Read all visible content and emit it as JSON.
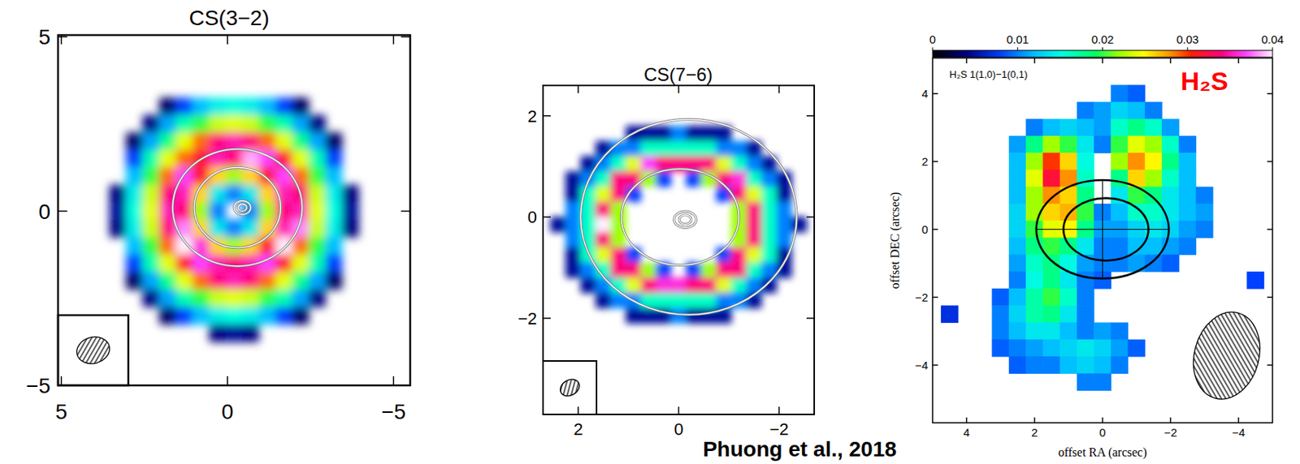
{
  "chart_data": [
    {
      "type": "heatmap",
      "title": "CS(3−2)",
      "xlim": [
        5.1,
        -5.5
      ],
      "ylim": [
        -5,
        5.05
      ],
      "xticks": [
        5,
        0,
        {
          "value": -5,
          "label": "−5"
        }
      ],
      "yticks": [
        {
          "value": -5,
          "label": "−5"
        },
        0,
        5
      ],
      "clim": [
        0,
        1
      ],
      "x": [
        3.3,
        2.8,
        2.3,
        1.8,
        1.3,
        0.8,
        0.3,
        -0.2,
        -0.7,
        -1.2,
        -1.7,
        -2.2,
        -2.7,
        -3.2,
        -3.7
      ],
      "y": [
        3,
        2.5,
        2,
        1.5,
        1,
        0.5,
        0,
        -0.5,
        -1,
        -1.5,
        -2,
        -2.5,
        -3,
        -3.5
      ],
      "cells": [
        [
          null,
          null,
          null,
          0.08,
          0.2,
          0.3,
          0.36,
          0.38,
          0.36,
          0.3,
          0.2,
          0.08,
          null,
          null,
          null
        ],
        [
          null,
          null,
          0.1,
          0.28,
          0.42,
          0.5,
          0.58,
          0.6,
          0.58,
          0.5,
          0.42,
          0.28,
          0.1,
          null,
          null
        ],
        [
          null,
          0.08,
          0.28,
          0.45,
          0.6,
          0.72,
          0.85,
          0.88,
          0.85,
          0.72,
          0.6,
          0.45,
          0.28,
          0.08,
          null
        ],
        [
          null,
          0.2,
          0.42,
          0.6,
          0.72,
          0.8,
          0.88,
          0.85,
          0.97,
          0.92,
          0.8,
          0.6,
          0.42,
          0.2,
          null
        ],
        [
          null,
          0.3,
          0.5,
          0.72,
          0.92,
          0.8,
          0.65,
          0.55,
          0.65,
          0.8,
          0.92,
          0.72,
          0.5,
          0.3,
          null
        ],
        [
          0.1,
          0.36,
          0.58,
          0.85,
          0.88,
          0.65,
          0.35,
          0.25,
          0.35,
          0.65,
          0.88,
          0.85,
          0.58,
          0.36,
          0.1
        ],
        [
          0.12,
          0.38,
          0.6,
          0.88,
          0.85,
          0.55,
          0.25,
          null,
          0.25,
          0.55,
          0.85,
          0.88,
          0.6,
          0.38,
          0.12
        ],
        [
          0.1,
          0.36,
          0.58,
          0.85,
          0.95,
          0.65,
          0.35,
          0.25,
          0.35,
          0.65,
          0.88,
          0.95,
          0.58,
          0.36,
          0.1
        ],
        [
          null,
          0.3,
          0.5,
          0.72,
          1.0,
          0.9,
          0.65,
          0.55,
          0.65,
          0.8,
          1.0,
          0.72,
          0.5,
          0.3,
          null
        ],
        [
          null,
          0.2,
          0.42,
          0.6,
          0.8,
          0.92,
          0.88,
          0.85,
          0.88,
          0.92,
          0.8,
          0.6,
          0.42,
          0.2,
          null
        ],
        [
          null,
          0.08,
          0.28,
          0.45,
          0.6,
          0.72,
          0.85,
          0.88,
          0.85,
          0.72,
          0.6,
          0.45,
          0.28,
          0.08,
          null
        ],
        [
          null,
          null,
          0.1,
          0.28,
          0.42,
          0.5,
          0.58,
          0.6,
          0.58,
          0.5,
          0.42,
          0.28,
          0.1,
          null,
          null
        ],
        [
          null,
          null,
          null,
          0.08,
          0.2,
          0.3,
          0.36,
          0.38,
          0.36,
          0.3,
          0.2,
          0.08,
          null,
          null,
          null
        ],
        [
          null,
          null,
          null,
          null,
          null,
          null,
          0.1,
          0.12,
          0.1,
          null,
          null,
          null,
          null,
          null,
          null
        ]
      ],
      "ellipses": [
        {
          "x": -0.3,
          "y": 0.1,
          "a": 1.95,
          "b": 1.68
        },
        {
          "x": -0.3,
          "y": 0.1,
          "a": 1.3,
          "b": 1.15
        },
        {
          "x": -0.45,
          "y": 0.1,
          "a": 0.25,
          "b": 0.2
        },
        {
          "x": -0.45,
          "y": 0.1,
          "a": 0.13,
          "b": 0.1
        }
      ],
      "beam": {
        "major": 1.0,
        "minor": 0.75,
        "angle": 15
      }
    },
    {
      "type": "heatmap",
      "title": "CS(7−6)",
      "xlim": [
        2.7,
        -2.7
      ],
      "ylim": [
        -3.9,
        2.6
      ],
      "xticks": [
        2,
        0,
        {
          "value": -2,
          "label": "−2"
        }
      ],
      "yticks": [
        {
          "value": -2,
          "label": "−2"
        },
        0,
        2
      ],
      "clim": [
        0,
        1
      ],
      "x": [
        2.4,
        2.1,
        1.8,
        1.5,
        1.2,
        0.9,
        0.6,
        0.3,
        0,
        -0.3,
        -0.6,
        -0.9,
        -1.2,
        -1.5,
        -1.8,
        -2.1,
        -2.4
      ],
      "y": [
        1.65,
        1.35,
        1.05,
        0.75,
        0.45,
        0.15,
        -0.15,
        -0.45,
        -0.75,
        -1.05,
        -1.35,
        -1.65,
        -1.95
      ],
      "cells": [
        [
          null,
          null,
          null,
          null,
          null,
          0.12,
          0.12,
          0.12,
          0.25,
          0.12,
          0.12,
          0.12,
          null,
          null,
          null,
          null,
          null
        ],
        [
          null,
          null,
          null,
          0.12,
          0.25,
          0.25,
          0.4,
          0.4,
          0.4,
          0.4,
          0.4,
          0.25,
          0.25,
          0.12,
          null,
          null,
          null
        ],
        [
          null,
          null,
          0.12,
          0.25,
          0.4,
          0.6,
          0.92,
          0.85,
          0.85,
          0.85,
          0.85,
          0.6,
          0.4,
          0.25,
          0.12,
          null,
          null
        ],
        [
          null,
          0.12,
          0.25,
          0.4,
          0.85,
          0.85,
          0.55,
          0.2,
          null,
          0.2,
          0.55,
          0.85,
          0.9,
          0.4,
          0.25,
          0.12,
          null
        ],
        [
          null,
          0.12,
          0.4,
          0.6,
          0.85,
          0.2,
          null,
          null,
          null,
          null,
          null,
          0.2,
          0.85,
          0.6,
          0.4,
          0.12,
          null
        ],
        [
          null,
          0.25,
          0.4,
          0.85,
          0.55,
          null,
          null,
          null,
          null,
          null,
          null,
          null,
          0.55,
          0.85,
          0.4,
          0.25,
          null
        ],
        [
          0.12,
          0.25,
          0.4,
          1.0,
          0.55,
          null,
          null,
          null,
          null,
          null,
          null,
          null,
          0.55,
          0.85,
          0.4,
          0.25,
          0.12
        ],
        [
          null,
          0.25,
          0.4,
          0.85,
          0.55,
          null,
          null,
          null,
          null,
          null,
          null,
          null,
          0.55,
          0.85,
          0.4,
          0.25,
          null
        ],
        [
          null,
          0.12,
          0.4,
          0.6,
          0.85,
          0.2,
          null,
          null,
          null,
          null,
          null,
          0.2,
          0.85,
          0.6,
          0.4,
          0.12,
          null
        ],
        [
          null,
          0.12,
          0.25,
          0.4,
          0.85,
          0.85,
          0.55,
          0.2,
          null,
          0.2,
          0.55,
          0.85,
          0.85,
          0.4,
          0.25,
          0.12,
          null
        ],
        [
          null,
          null,
          0.12,
          0.25,
          0.4,
          0.6,
          0.85,
          0.9,
          0.9,
          0.85,
          0.85,
          0.6,
          0.4,
          0.25,
          0.12,
          null,
          null
        ],
        [
          null,
          null,
          null,
          0.12,
          0.25,
          0.25,
          0.4,
          0.4,
          0.4,
          0.4,
          0.4,
          0.25,
          0.25,
          0.12,
          null,
          null,
          null
        ],
        [
          null,
          null,
          null,
          null,
          null,
          0.12,
          0.12,
          0.12,
          0.25,
          0.12,
          0.12,
          0.12,
          null,
          null,
          null,
          null,
          null
        ]
      ],
      "ellipses": [
        {
          "x": -0.2,
          "y": 0,
          "a": 2.15,
          "b": 1.93
        },
        {
          "x": -0.03,
          "y": 0,
          "a": 1.17,
          "b": 0.95
        },
        {
          "x": -0.13,
          "y": -0.05,
          "a": 0.22,
          "b": 0.16
        },
        {
          "x": -0.13,
          "y": -0.05,
          "a": 0.12,
          "b": 0.09
        }
      ],
      "beam": {
        "major": 0.4,
        "minor": 0.3,
        "angle": 30
      }
    },
    {
      "type": "heatmap",
      "title": "H₂S",
      "annotation": "H₂S 1(1,0)−1(0,1)",
      "xlabel": "offset RA (arcsec)",
      "ylabel": "offset DEC (arcsec)",
      "xlim": [
        5,
        -5
      ],
      "ylim": [
        -5.7,
        5.05
      ],
      "xticks": [
        4,
        2,
        0,
        {
          "value": -2,
          "label": "−2"
        },
        {
          "value": -4,
          "label": "−4"
        }
      ],
      "yticks": [
        {
          "value": -4,
          "label": "−4"
        },
        {
          "value": -2,
          "label": "−2"
        },
        0,
        2,
        4
      ],
      "colorbar": {
        "range": [
          0,
          0.04
        ],
        "ticks": [
          0,
          0.01,
          0.02,
          0.03,
          0.04
        ]
      },
      "x": [
        4.5,
        4,
        3.5,
        3,
        2.5,
        2,
        1.5,
        1,
        0.5,
        0,
        -0.5,
        -1,
        -1.5,
        -2,
        -2.5,
        -3,
        -3.5,
        -4,
        -4.5
      ],
      "y": [
        4,
        3.5,
        3,
        2.5,
        2,
        1.5,
        1,
        0.5,
        0,
        -0.5,
        -1,
        -1.5,
        -2,
        -2.5,
        -3,
        -3.5,
        -4,
        -4.5
      ],
      "cells": [
        [
          null,
          null,
          null,
          null,
          null,
          null,
          null,
          null,
          null,
          null,
          0.01,
          0.009,
          null,
          null,
          null,
          null,
          null,
          null,
          null
        ],
        [
          null,
          null,
          null,
          null,
          null,
          null,
          null,
          null,
          0.01,
          0.011,
          0.013,
          0.012,
          0.01,
          null,
          null,
          null,
          null,
          null,
          null
        ],
        [
          null,
          null,
          null,
          null,
          null,
          0.01,
          0.012,
          0.013,
          0.012,
          0.011,
          0.016,
          0.018,
          0.016,
          0.011,
          null,
          null,
          null,
          null,
          null
        ],
        [
          null,
          null,
          null,
          null,
          0.011,
          0.018,
          0.022,
          0.02,
          0.014,
          0.01,
          0.02,
          0.024,
          0.022,
          0.016,
          0.01,
          null,
          null,
          null,
          null
        ],
        [
          null,
          null,
          null,
          null,
          0.012,
          0.022,
          0.03,
          0.026,
          0.015,
          null,
          0.022,
          0.028,
          0.025,
          0.018,
          0.012,
          null,
          null,
          null,
          null
        ],
        [
          null,
          null,
          null,
          null,
          0.012,
          0.024,
          0.032,
          0.028,
          0.016,
          null,
          0.018,
          0.026,
          0.022,
          0.016,
          0.012,
          null,
          null,
          null,
          null
        ],
        [
          null,
          null,
          null,
          null,
          0.012,
          0.022,
          0.028,
          0.026,
          0.018,
          null,
          0.014,
          0.02,
          0.018,
          0.014,
          0.012,
          0.01,
          null,
          null,
          null
        ],
        [
          null,
          null,
          null,
          null,
          0.013,
          0.022,
          0.026,
          0.027,
          0.02,
          0.01,
          0.012,
          0.016,
          0.016,
          0.014,
          0.012,
          0.011,
          null,
          null,
          null
        ],
        [
          null,
          null,
          null,
          null,
          0.013,
          0.02,
          0.024,
          0.025,
          0.018,
          0.011,
          0.011,
          0.013,
          0.014,
          0.013,
          0.011,
          0.01,
          null,
          null,
          null
        ],
        [
          null,
          null,
          null,
          null,
          0.012,
          0.018,
          0.02,
          0.018,
          0.014,
          0.01,
          0.01,
          0.012,
          0.012,
          0.011,
          0.01,
          null,
          null,
          null,
          null
        ],
        [
          null,
          null,
          null,
          null,
          0.011,
          0.016,
          0.018,
          0.015,
          0.011,
          0.01,
          0.01,
          0.011,
          0.01,
          0.009,
          null,
          null,
          null,
          null,
          null
        ],
        [
          null,
          null,
          null,
          null,
          0.01,
          0.015,
          0.018,
          0.014,
          0.01,
          0.009,
          null,
          null,
          null,
          null,
          null,
          null,
          null,
          null,
          0.008
        ],
        [
          null,
          null,
          null,
          0.009,
          0.012,
          0.017,
          0.02,
          0.016,
          0.01,
          null,
          null,
          null,
          null,
          null,
          null,
          null,
          null,
          null,
          null
        ],
        [
          0.007,
          null,
          null,
          0.01,
          0.013,
          0.017,
          0.018,
          0.014,
          0.01,
          null,
          null,
          null,
          null,
          null,
          null,
          null,
          null,
          null,
          null
        ],
        [
          null,
          null,
          null,
          0.01,
          0.012,
          0.014,
          0.014,
          0.012,
          0.01,
          0.011,
          0.01,
          null,
          null,
          null,
          null,
          null,
          null,
          null,
          null
        ],
        [
          null,
          null,
          null,
          0.009,
          0.01,
          0.011,
          0.012,
          0.013,
          0.014,
          0.013,
          0.011,
          0.009,
          null,
          null,
          null,
          null,
          null,
          null,
          null
        ],
        [
          null,
          null,
          null,
          null,
          0.009,
          0.01,
          0.01,
          0.012,
          0.013,
          0.012,
          0.01,
          null,
          null,
          null,
          null,
          null,
          null,
          null,
          null
        ],
        [
          null,
          null,
          null,
          null,
          null,
          null,
          null,
          null,
          0.01,
          0.01,
          null,
          null,
          null,
          null,
          null,
          null,
          null,
          null,
          null
        ]
      ],
      "ellipses": [
        {
          "x": 0,
          "y": 0,
          "a": 1.95,
          "b": 1.45
        },
        {
          "x": -0.1,
          "y": 0,
          "a": 1.25,
          "b": 0.92
        }
      ],
      "beam": {
        "major": 2.6,
        "minor": 1.9,
        "angle": 75
      }
    }
  ],
  "source": "Phuong et al., 2018"
}
